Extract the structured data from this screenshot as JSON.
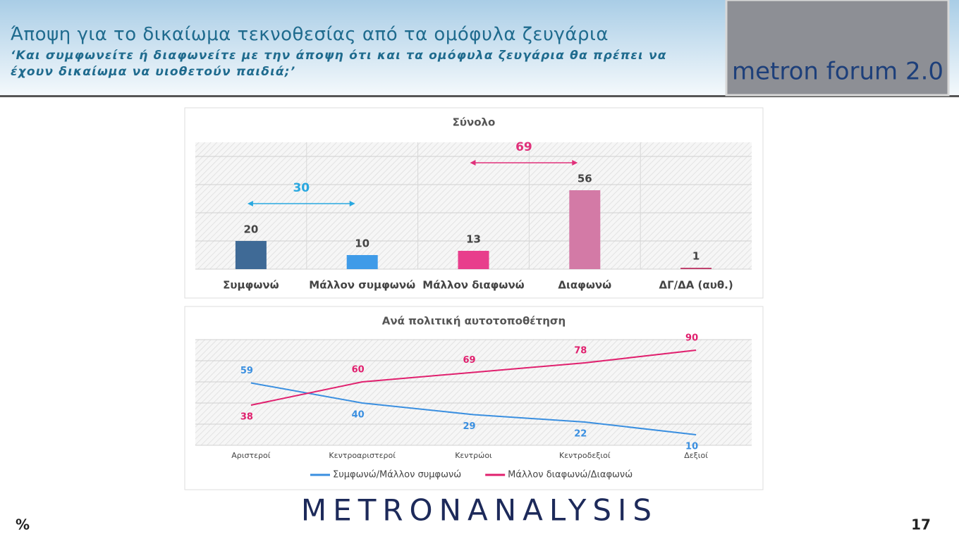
{
  "header": {
    "title": "Άποψη για το δικαίωμα τεκνοθεσίας από τα ομόφυλα ζευγάρια",
    "subtitle": "‘Και συμφωνείτε ή διαφωνείτε με την άποψη ότι και τα ομόφυλα ζευγάρια θα πρέπει να έχουν δικαίωμα να υιοθετούν παιδιά;’",
    "logo": "metron forum 2.0"
  },
  "chart_data": [
    {
      "type": "bar",
      "title": "Σύνολο",
      "categories": [
        "Συμφωνώ",
        "Μάλλον συμφωνώ",
        "Μάλλον διαφωνώ",
        "Διαφωνώ",
        "ΔΓ/ΔΑ (αυθ.)"
      ],
      "values": [
        20,
        10,
        13,
        56,
        1
      ],
      "colors": [
        "#3f6a96",
        "#3f9be8",
        "#e83e8c",
        "#d37aa6",
        "#c0436f"
      ],
      "ylim": [
        0,
        90
      ],
      "yticks": [
        0,
        20,
        40,
        60,
        80
      ],
      "grid": true,
      "annotations": [
        {
          "value": 30,
          "color": "#29a8e0"
        },
        {
          "value": 69,
          "color": "#e0307a"
        }
      ]
    },
    {
      "type": "line",
      "title": "Ανά πολιτική αυτοτοποθέτηση",
      "categories": [
        "Αριστεροί",
        "Κεντροαριστεροί",
        "Κεντρώοι",
        "Κεντροδεξιοί",
        "Δεξιοί"
      ],
      "series": [
        {
          "name": "Συμφωνώ/Μάλλον συμφωνώ",
          "color": "#3a8fe0",
          "values": [
            59,
            40,
            29,
            22,
            10
          ]
        },
        {
          "name": "Μάλλον διαφωνώ/Διαφωνώ",
          "color": "#e0206e",
          "values": [
            38,
            60,
            69,
            78,
            90
          ]
        }
      ],
      "ylim": [
        0,
        100
      ],
      "yticks": [
        0,
        20,
        40,
        60,
        80,
        100
      ],
      "grid": true,
      "legend": "bottom"
    }
  ],
  "footer": {
    "unit": "%",
    "brand": "METRONANALYSIS",
    "page": "17"
  }
}
